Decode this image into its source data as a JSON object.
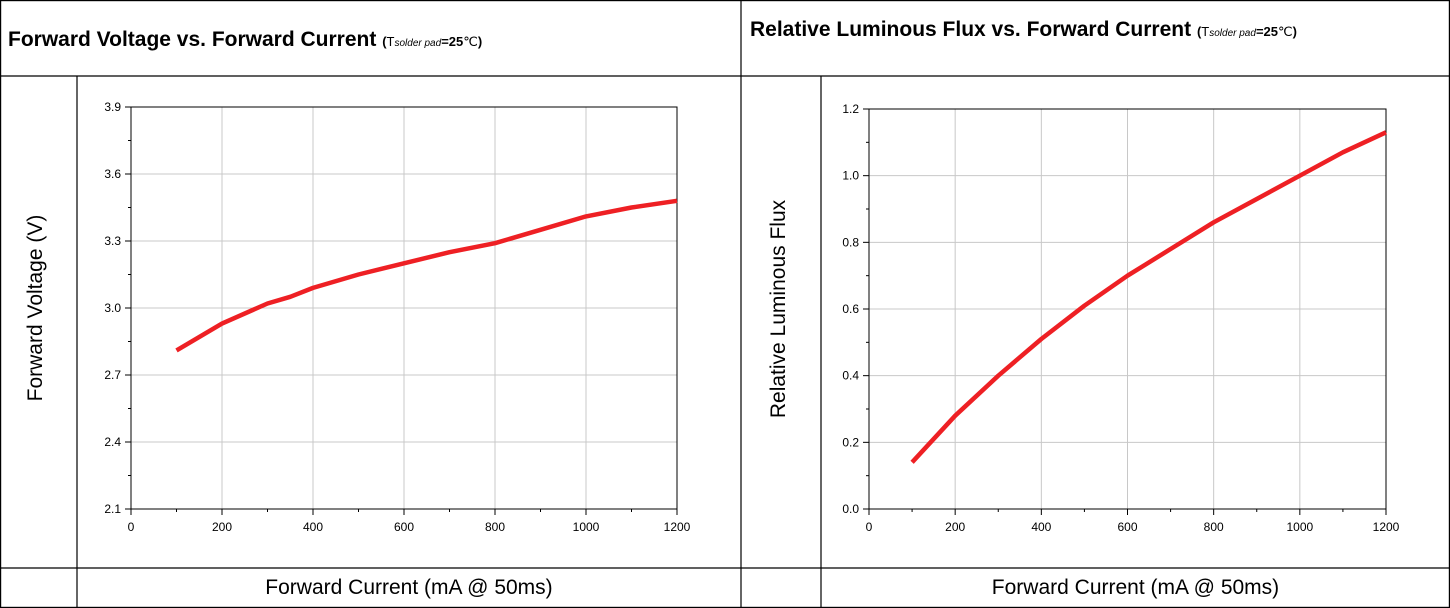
{
  "panels": [
    {
      "title_main": "Forward Voltage vs. Forward Current",
      "title_cond": {
        "open": "(",
        "t": "T",
        "sub": "solder pad",
        "eq": "=25",
        "unit": "℃",
        "close": ")"
      }
    },
    {
      "title_main": "Relative Luminous Flux vs. Forward Current",
      "title_cond": {
        "open": "(",
        "t": "T",
        "sub": "solder pad",
        "eq": "=25",
        "unit": "℃",
        "close": ")"
      }
    }
  ],
  "chart_data": [
    {
      "type": "line",
      "title": "Forward Voltage vs. Forward Current (Tsolder pad=25℃)",
      "xlabel": "Forward Current (mA @ 50ms)",
      "ylabel": "Forward Voltage (V)",
      "xlim": [
        0,
        1200
      ],
      "ylim": [
        2.1,
        3.9
      ],
      "xticks": [
        "0",
        "200",
        "400",
        "600",
        "800",
        "1000",
        "1200"
      ],
      "yticks": [
        "2.1",
        "2.4",
        "2.7",
        "3.0",
        "3.3",
        "3.6",
        "3.9"
      ],
      "grid": true,
      "series": [
        {
          "color": "#ee2024",
          "x": [
            100,
            200,
            300,
            350,
            400,
            500,
            600,
            700,
            800,
            900,
            1000,
            1100,
            1200
          ],
          "y": [
            2.81,
            2.93,
            3.02,
            3.05,
            3.09,
            3.15,
            3.2,
            3.25,
            3.29,
            3.35,
            3.41,
            3.45,
            3.48
          ]
        }
      ]
    },
    {
      "type": "line",
      "title": "Relative Luminous Flux vs. Forward Current (Tsolder pad=25℃)",
      "xlabel": "Forward Current (mA @ 50ms)",
      "ylabel": "Relative Luminous Flux",
      "xlim": [
        0,
        1200
      ],
      "ylim": [
        0.0,
        1.2
      ],
      "xticks": [
        "0",
        "200",
        "400",
        "600",
        "800",
        "1000",
        "1200"
      ],
      "yticks": [
        "0.0",
        "0.2",
        "0.4",
        "0.6",
        "0.8",
        "1.0",
        "1.2"
      ],
      "grid": true,
      "series": [
        {
          "color": "#ee2024",
          "x": [
            100,
            200,
            300,
            400,
            500,
            600,
            700,
            800,
            900,
            1000,
            1100,
            1200
          ],
          "y": [
            0.14,
            0.28,
            0.4,
            0.51,
            0.61,
            0.7,
            0.78,
            0.86,
            0.93,
            1.0,
            1.07,
            1.13
          ]
        }
      ]
    }
  ]
}
